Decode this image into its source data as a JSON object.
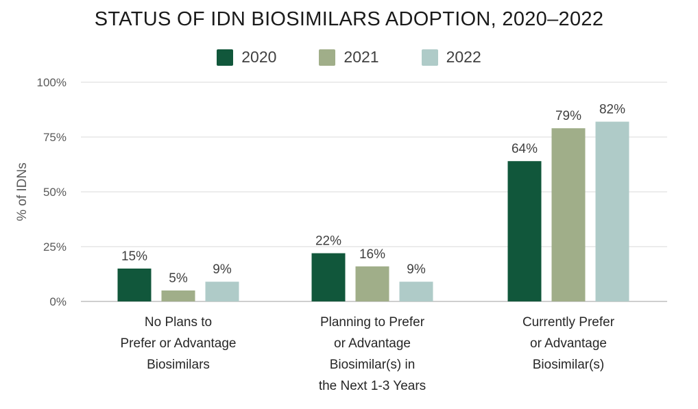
{
  "chart_data": {
    "type": "bar",
    "title": "STATUS OF IDN BIOSIMILARS ADOPTION, 2020–2022",
    "ylabel": "% of IDNs",
    "xlabel": "",
    "ylim": [
      0,
      100
    ],
    "yticks": [
      "0%",
      "25%",
      "50%",
      "75%",
      "100%"
    ],
    "ytick_values": [
      0,
      25,
      50,
      75,
      100
    ],
    "grid": true,
    "legend_position": "top-center",
    "categories": [
      [
        "No Plans to",
        "Prefer or Advantage",
        "Biosimilars"
      ],
      [
        "Planning to Prefer",
        "or Advantage",
        "Biosimilar(s) in",
        "the Next 1-3 Years"
      ],
      [
        "Currently Prefer",
        "or Advantage",
        "Biosimilar(s)"
      ]
    ],
    "series": [
      {
        "name": "2020",
        "color": "#11573b",
        "values": [
          15,
          22,
          64
        ],
        "labels": [
          "15%",
          "22%",
          "64%"
        ]
      },
      {
        "name": "2021",
        "color": "#a0ae89",
        "values": [
          5,
          16,
          79
        ],
        "labels": [
          "5%",
          "16%",
          "79%"
        ]
      },
      {
        "name": "2022",
        "color": "#afcbc8",
        "values": [
          9,
          9,
          82
        ],
        "labels": [
          "9%",
          "9%",
          "82%"
        ]
      }
    ]
  }
}
